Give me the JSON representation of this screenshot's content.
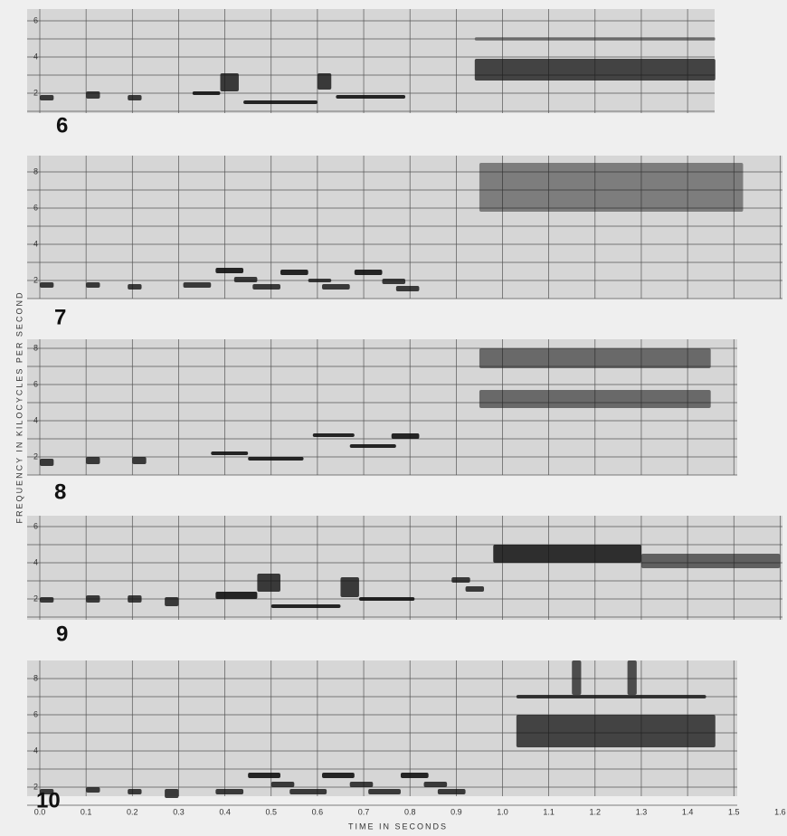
{
  "figure": {
    "panels": [
      {
        "label": "6",
        "yticks": [
          "2",
          "4",
          "6"
        ]
      },
      {
        "label": "7",
        "yticks": [
          "2",
          "4",
          "6",
          "8"
        ]
      },
      {
        "label": "8",
        "yticks": [
          "2",
          "4",
          "6",
          "8"
        ]
      },
      {
        "label": "9",
        "yticks": [
          "2",
          "4",
          "6"
        ]
      },
      {
        "label": "10",
        "yticks": [
          "2",
          "4",
          "6",
          "8"
        ]
      }
    ],
    "xticks": [
      "0.0",
      "0.1",
      "0.2",
      "0.3",
      "0.4",
      "0.5",
      "0.6",
      "0.7",
      "0.8",
      "0.9",
      "1.0",
      "1.1",
      "1.2",
      "1.3",
      "1.4",
      "1.5",
      "1.6"
    ],
    "x_axis_title": "TIME IN SECONDS",
    "y_axis_title": "FREQUENCY IN KILOCYCLES PER SECOND"
  }
}
